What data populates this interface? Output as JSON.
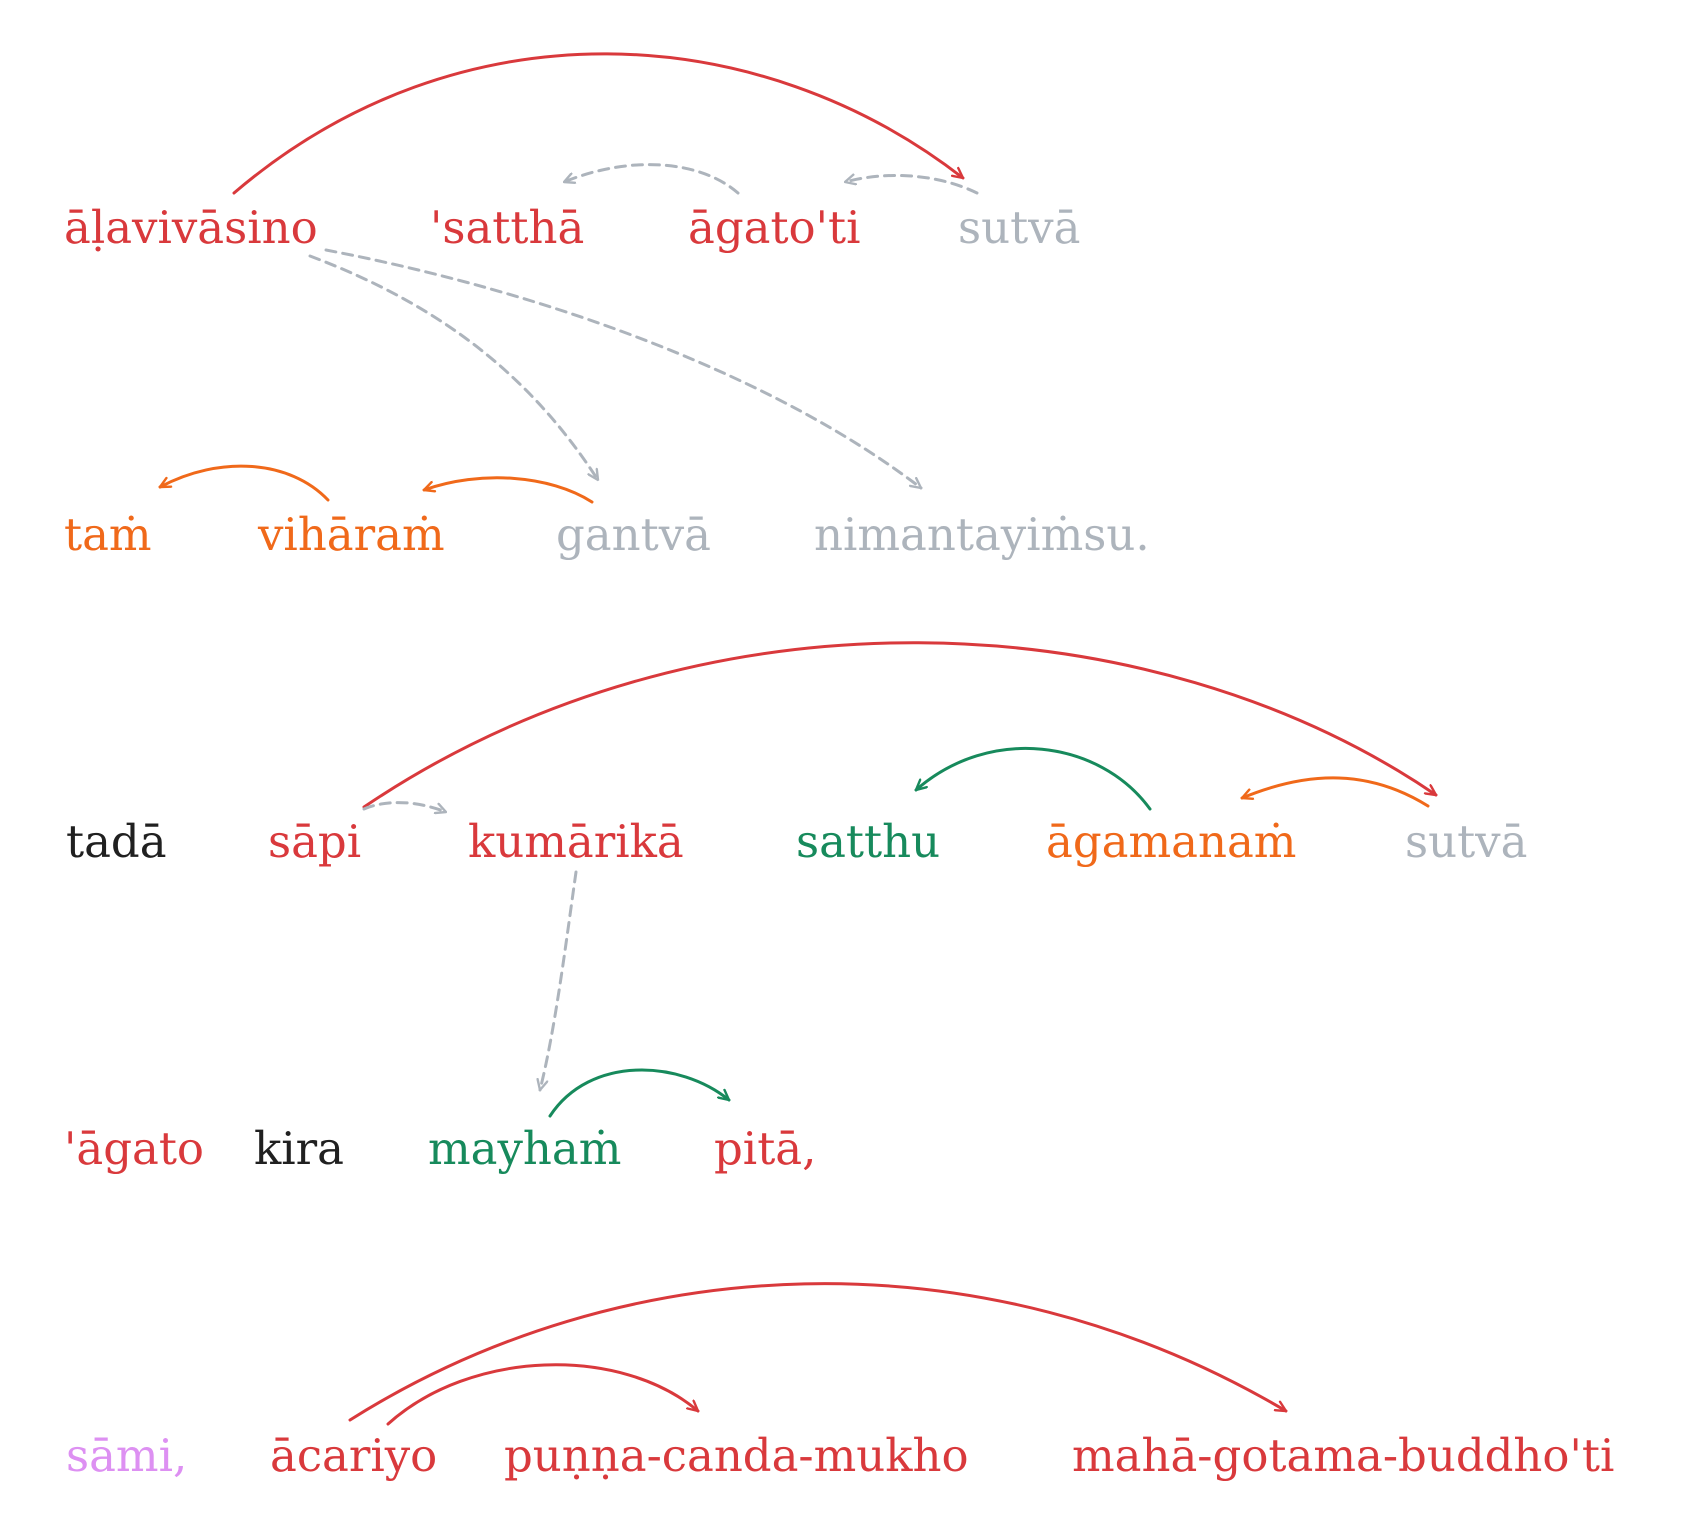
{
  "colors": {
    "red": "#d9393c",
    "orange": "#f0691a",
    "grey": "#adb4bc",
    "green": "#178a5c",
    "black": "#202020",
    "violet": "#dd90f2"
  },
  "lines": [
    {
      "words": [
        {
          "text": "āḷavivāsino",
          "color": "red"
        },
        {
          "text": "'satthā",
          "color": "red"
        },
        {
          "text": "āgato'ti",
          "color": "red"
        },
        {
          "text": "sutvā",
          "color": "grey"
        }
      ]
    },
    {
      "words": [
        {
          "text": "taṁ",
          "color": "orange"
        },
        {
          "text": "vihāraṁ",
          "color": "orange"
        },
        {
          "text": "gantvā",
          "color": "grey"
        },
        {
          "text": "nimantayiṁsu.",
          "color": "grey"
        }
      ]
    },
    {
      "words": [
        {
          "text": "tadā",
          "color": "black"
        },
        {
          "text": "sāpi",
          "color": "red"
        },
        {
          "text": "kumārikā",
          "color": "red"
        },
        {
          "text": "satthu",
          "color": "green"
        },
        {
          "text": "āgamanaṁ",
          "color": "orange"
        },
        {
          "text": "sutvā",
          "color": "grey"
        }
      ]
    },
    {
      "words": [
        {
          "text": "'āgato",
          "color": "red"
        },
        {
          "text": "kira",
          "color": "black"
        },
        {
          "text": "mayhaṁ",
          "color": "green"
        },
        {
          "text": "pitā,",
          "color": "red"
        }
      ]
    },
    {
      "words": [
        {
          "text": "sāmi,",
          "color": "violet"
        },
        {
          "text": "ācariyo",
          "color": "red"
        },
        {
          "text": "puṇṇa-canda-mukho",
          "color": "red"
        },
        {
          "text": "mahā-gotama-buddho'ti",
          "color": "red"
        }
      ]
    }
  ],
  "arcs": [
    {
      "from": "āḷavivāsino",
      "to": "sutvā (line 1)",
      "color": "red",
      "style": "solid"
    },
    {
      "from": "āgato'ti",
      "to": "'satthā",
      "color": "grey",
      "style": "dashed"
    },
    {
      "from": "sutvā (line 1)",
      "to": "āgato'ti",
      "color": "grey",
      "style": "dashed"
    },
    {
      "from": "āḷavivāsino",
      "to": "gantvā",
      "color": "grey",
      "style": "dashed"
    },
    {
      "from": "āḷavivāsino",
      "to": "nimantayiṁsu.",
      "color": "grey",
      "style": "dashed"
    },
    {
      "from": "vihāraṁ",
      "to": "taṁ",
      "color": "orange",
      "style": "solid"
    },
    {
      "from": "gantvā",
      "to": "vihāraṁ",
      "color": "orange",
      "style": "solid"
    },
    {
      "from": "sāpi",
      "to": "sutvā (line 3)",
      "color": "red",
      "style": "solid"
    },
    {
      "from": "sāpi",
      "to": "kumārikā",
      "color": "grey",
      "style": "dashed"
    },
    {
      "from": "āgamanaṁ",
      "to": "satthu",
      "color": "green",
      "style": "solid"
    },
    {
      "from": "sutvā (line 3)",
      "to": "āgamanaṁ",
      "color": "orange",
      "style": "solid"
    },
    {
      "from": "kumārikā",
      "to": "mayhaṁ",
      "color": "grey",
      "style": "dashed"
    },
    {
      "from": "mayhaṁ",
      "to": "pitā,",
      "color": "green",
      "style": "solid"
    },
    {
      "from": "ācariyo",
      "to": "mahā-gotama-buddho'ti",
      "color": "red",
      "style": "solid"
    },
    {
      "from": "ācariyo",
      "to": "puṇṇa-canda-mukho",
      "color": "red",
      "style": "solid"
    }
  ]
}
